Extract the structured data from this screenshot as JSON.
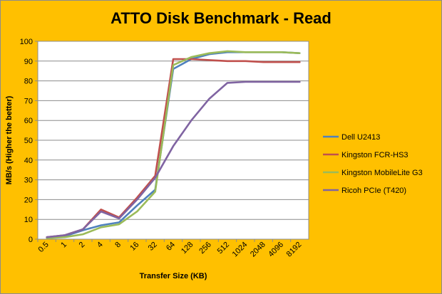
{
  "chart_data": {
    "type": "line",
    "title": "ATTO Disk Benchmark - Read",
    "xlabel": "Transfer Size (KB)",
    "ylabel": "MB/s (Higher the better)",
    "ylim": [
      0,
      100
    ],
    "yticks": [
      0,
      10,
      20,
      30,
      40,
      50,
      60,
      70,
      80,
      90,
      100
    ],
    "grid": "horizontal",
    "legend_position": "right",
    "categories": [
      "0.5",
      "1",
      "2",
      "4",
      "8",
      "16",
      "32",
      "64",
      "128",
      "256",
      "512",
      "1024",
      "2048",
      "4096",
      "8192"
    ],
    "series": [
      {
        "name": "Dell U2413",
        "color": "#4f81bd",
        "values": [
          0.8,
          1.5,
          4.5,
          7,
          8.5,
          17,
          25,
          86,
          91,
          93.5,
          94.5,
          94.5,
          94.5,
          94.5,
          94
        ]
      },
      {
        "name": "Kingston FCR-HS3",
        "color": "#c0504d",
        "values": [
          1,
          2,
          5,
          15,
          11,
          21,
          32,
          91,
          91,
          90.5,
          90,
          90,
          89.5,
          89.5,
          89.5
        ]
      },
      {
        "name": "Kingston MobileLite G3",
        "color": "#9bbb59",
        "values": [
          0.5,
          1,
          2.5,
          6,
          7.5,
          14,
          24,
          88,
          92,
          94,
          95,
          94.5,
          94.5,
          94.5,
          94
        ]
      },
      {
        "name": "Ricoh PCIe (T420)",
        "color": "#8064a2",
        "values": [
          1,
          2,
          5,
          14,
          10.5,
          20,
          31,
          47,
          60,
          71,
          79,
          79.5,
          79.5,
          79.5,
          79.5
        ]
      }
    ]
  }
}
